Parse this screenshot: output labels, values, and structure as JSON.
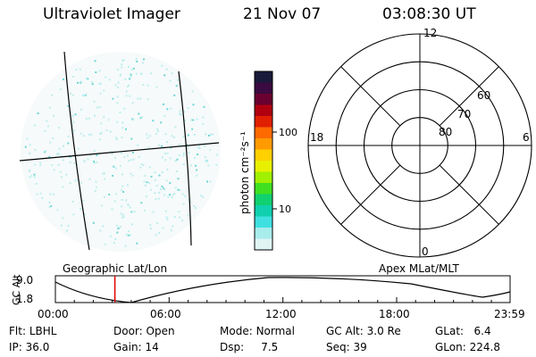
{
  "header": {
    "instrument": "Ultraviolet Imager",
    "date": "21 Nov 07",
    "time": "03:08:30 UT"
  },
  "colorbar": {
    "unit_label": "photon cm⁻²s⁻¹",
    "ticks": [
      "100",
      "10"
    ],
    "colors": [
      "#1a1a3a",
      "#3a0a40",
      "#6a0030",
      "#b00010",
      "#e02000",
      "#ff6a00",
      "#ff9a00",
      "#ffd000",
      "#e8f000",
      "#a0f000",
      "#40e020",
      "#10d070",
      "#10d0b0",
      "#40e0e0",
      "#a8ecec",
      "#e0f4f4"
    ]
  },
  "polar_plot": {
    "mlt_labels": {
      "top": "12",
      "left": "18",
      "right": "6",
      "bottom": "0"
    },
    "lat_labels": [
      "60",
      "70",
      "80"
    ],
    "ring_count": 4
  },
  "map_labels": {
    "left": "Geographic Lat/Lon",
    "right": "Apex MLat/MLT"
  },
  "alt_chart": {
    "ylabel": "GC Alt",
    "y_ticks": [
      "9.0",
      "1.8"
    ],
    "x_ticks": [
      "00:00",
      "06:00",
      "12:00",
      "18:00",
      "23:59"
    ],
    "current_time_marker_hours": 3.14,
    "marker_color": "#e00000"
  },
  "status": {
    "row1": [
      {
        "key": "Flt:",
        "value": "LBHL"
      },
      {
        "key": "Door:",
        "value": "Open"
      },
      {
        "key": "Mode:",
        "value": "Normal"
      },
      {
        "key": "GC Alt:",
        "value": "3.0 Re"
      },
      {
        "key": "GLat:",
        "value": "6.4"
      }
    ],
    "row2": [
      {
        "key": "IP:",
        "value": "36.0"
      },
      {
        "key": "Gain:",
        "value": "14"
      },
      {
        "key": "Dsp:",
        "value": "7.5"
      },
      {
        "key": "Seq:",
        "value": "39"
      },
      {
        "key": "GLon:",
        "value": "224.8"
      }
    ]
  }
}
